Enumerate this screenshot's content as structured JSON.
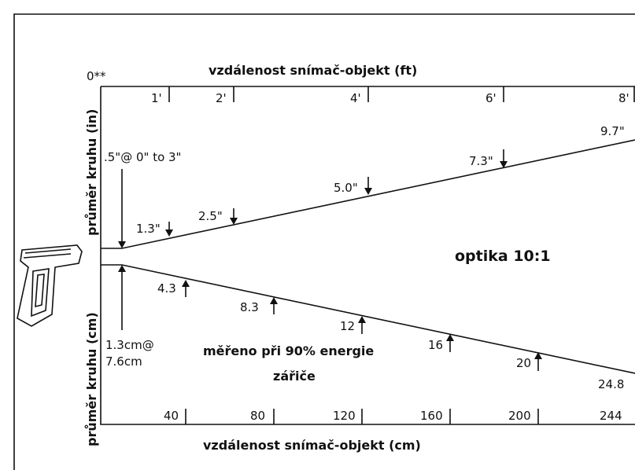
{
  "origin_label": "0**",
  "top_axis": {
    "title": "vzdálenost snímač-objekt (ft)",
    "ticks": [
      "1'",
      "2'",
      "4'",
      "6'",
      "8'"
    ]
  },
  "bottom_axis": {
    "title": "vzdálenost snímač-objekt (cm)",
    "ticks": [
      "40",
      "80",
      "120",
      "160",
      "200",
      "244"
    ]
  },
  "left_labels": {
    "upper": "průměr kruhu (in)",
    "lower": "průměr kruhu (cm)"
  },
  "upper_labels": [
    ".5\"@ 0\" to 3\"",
    "1.3\"",
    "2.5\"",
    "5.0\"",
    "7.3\"",
    "9.7\""
  ],
  "lower_labels": [
    "1.3cm@",
    "7.6cm",
    "4.3",
    "8.3",
    "12",
    "16",
    "20",
    "24.8"
  ],
  "optics": "optika 10:1",
  "note": [
    "měřeno při 90% energie",
    "zářiče"
  ]
}
